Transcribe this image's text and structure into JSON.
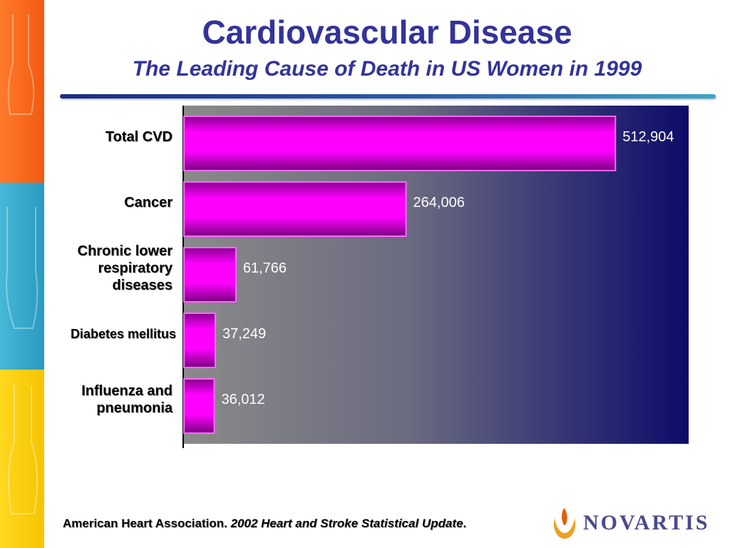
{
  "slide": {
    "title": "Cardiovascular Disease",
    "subtitle": "The Leading Cause of Death in US Women in 1999"
  },
  "footer": {
    "source_org": "American Heart Association.",
    "source_title": "2002 Heart and Stroke Statistical Update",
    "source_end": "."
  },
  "logo": {
    "name": "NOVARTIS"
  },
  "colors": {
    "title": "#33339a",
    "bar_fill": "#ff00ff",
    "bar_dark": "#7a0080",
    "plot_bg_start": "#8a8a8a",
    "plot_bg_end": "#0c0c6a",
    "value_label": "#ffffff",
    "category_label": "#000000"
  },
  "chart_data": {
    "type": "bar",
    "orientation": "horizontal",
    "categories": [
      [
        "Total CVD"
      ],
      [
        "Cancer"
      ],
      [
        "Chronic lower",
        "respiratory",
        "diseases"
      ],
      [
        "Diabetes mellitus"
      ],
      [
        "Influenza and",
        "pneumonia"
      ]
    ],
    "values": [
      512904,
      264006,
      61766,
      37249,
      36012
    ],
    "value_labels": [
      "512,904",
      "264,006",
      "61,766",
      "37,249",
      "36,012"
    ],
    "xlim": [
      0,
      600000
    ],
    "grid": false,
    "legend": "none"
  }
}
